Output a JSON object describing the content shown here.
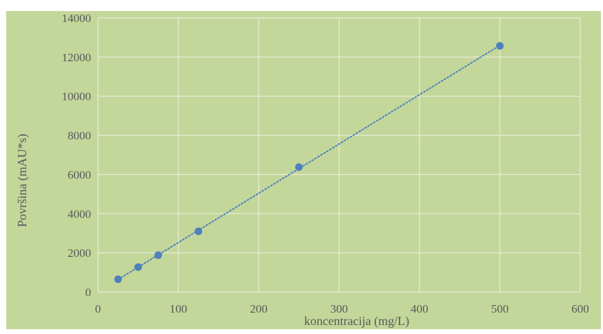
{
  "chart_data": {
    "type": "scatter",
    "title": "",
    "xlabel": "koncentracija (mg/L)",
    "ylabel": "Površina (mAU*s)",
    "xlim": [
      0,
      600
    ],
    "ylim": [
      0,
      14000
    ],
    "x_ticks": [
      0,
      100,
      200,
      300,
      400,
      500,
      600
    ],
    "y_ticks": [
      0,
      2000,
      4000,
      6000,
      8000,
      10000,
      12000,
      14000
    ],
    "x_tick_labels": [
      "0",
      "100",
      "200",
      "300",
      "400",
      "500",
      "600"
    ],
    "y_tick_labels": [
      "0",
      "2000",
      "4000",
      "6000",
      "8000",
      "10000",
      "12000",
      "14000"
    ],
    "grid": true,
    "legend": "none",
    "series": [
      {
        "x": [
          25,
          50,
          75,
          125,
          250,
          500
        ],
        "y": [
          650,
          1270,
          1880,
          3100,
          6380,
          12570
        ],
        "trendline": "linear, dotted"
      }
    ],
    "colors": {
      "background": "#c4d79b",
      "plot_area": "#c4d79b",
      "gridline": "#e6ecd3",
      "marker": "#4f81bd",
      "trendline": "#4f81bd",
      "text": "#595959"
    }
  }
}
